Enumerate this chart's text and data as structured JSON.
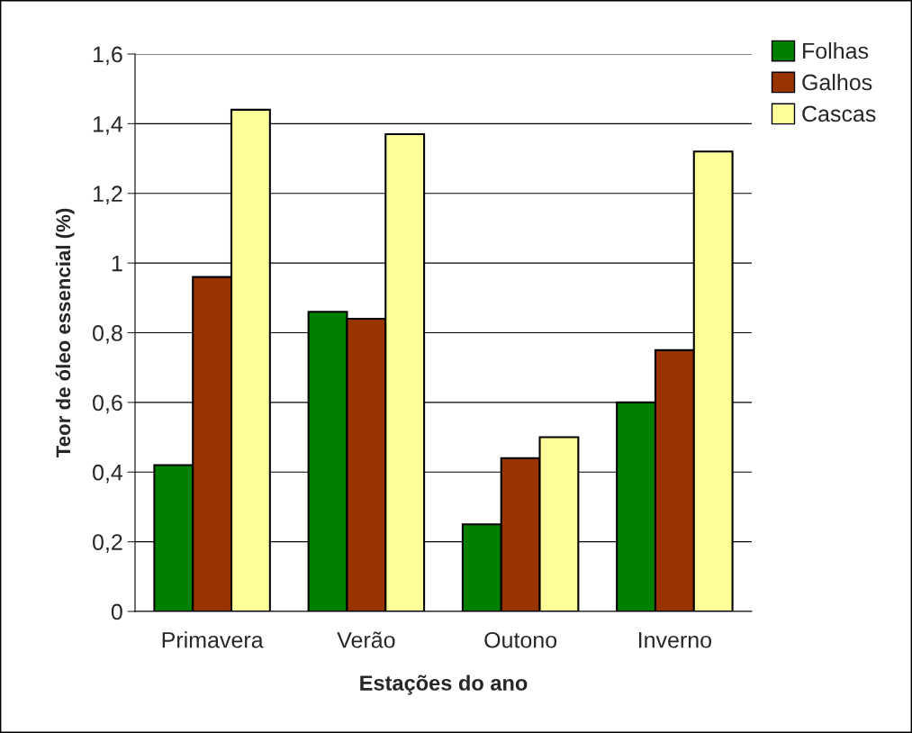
{
  "chart_data": {
    "type": "bar",
    "xlabel": "Estações do ano",
    "ylabel": "Teor de óleo essencial (%)",
    "categories": [
      "Primavera",
      "Verão",
      "Outono",
      "Inverno"
    ],
    "series": [
      {
        "name": "Folhas",
        "color": "#008000",
        "values": [
          0.42,
          0.86,
          0.25,
          0.6
        ]
      },
      {
        "name": "Galhos",
        "color": "#993300",
        "values": [
          0.96,
          0.84,
          0.44,
          0.75
        ]
      },
      {
        "name": "Cascas",
        "color": "#ffff99",
        "values": [
          1.44,
          1.37,
          0.5,
          1.32
        ]
      }
    ],
    "ylim": [
      0,
      1.6
    ],
    "yticks": [
      0,
      {
        "value": 0.2,
        "label": "0,2"
      },
      {
        "value": 0.4,
        "label": "0,4"
      },
      {
        "value": 0.6,
        "label": "0,6"
      },
      {
        "value": 0.8,
        "label": "0,8"
      },
      1,
      {
        "value": 1.2,
        "label": "1,2"
      },
      {
        "value": 1.4,
        "label": "1,4"
      },
      {
        "value": 1.6,
        "label": "1,6"
      }
    ],
    "grid": "y",
    "legend": "top right"
  }
}
